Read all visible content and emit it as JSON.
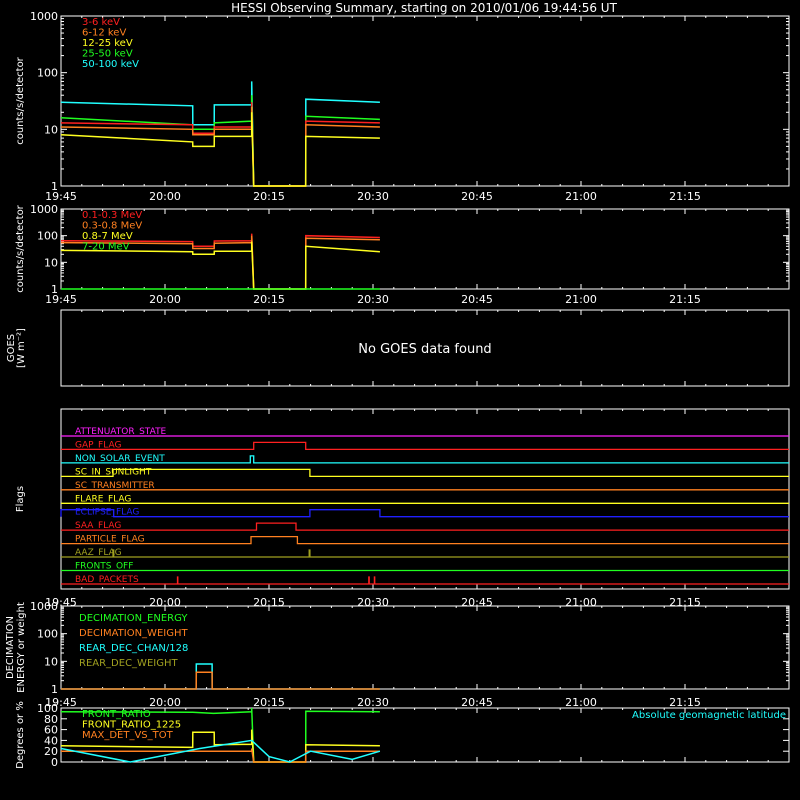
{
  "title": "HESSI Observing Summary, starting on 2010/01/06 19:44:56 UT",
  "time_ticks": [
    "19:45",
    "20:00",
    "20:15",
    "20:30",
    "20:45",
    "21:00",
    "21:15"
  ],
  "chart_data": [
    {
      "type": "line",
      "name": "low-energy",
      "ylabel": "counts/s/detector",
      "yscale": "log",
      "ylim": [
        1,
        1000
      ],
      "ytick_labels": [
        "1",
        "10",
        "100",
        "1000"
      ],
      "xlim_minutes": [
        0,
        46
      ],
      "legend": [
        {
          "label": "3-6 keV",
          "color": "#ff2020"
        },
        {
          "label": "6-12 keV",
          "color": "#ff8020"
        },
        {
          "label": "12-25 keV",
          "color": "#ffff20"
        },
        {
          "label": "25-50 keV",
          "color": "#20ff20"
        },
        {
          "label": "50-100 keV",
          "color": "#20ffff"
        }
      ],
      "series": [
        {
          "color": "#20ffff",
          "x": [
            0,
            19,
            19.01,
            22.1,
            22.11,
            27.5,
            27.51,
            27.8,
            27.81,
            35.3,
            35.31,
            46
          ],
          "y": [
            30,
            26,
            12,
            12,
            27,
            27,
            70,
            1,
            1,
            1,
            34,
            30
          ]
        },
        {
          "color": "#20ff20",
          "x": [
            0,
            19,
            19.01,
            22.1,
            22.11,
            27.5,
            27.51,
            27.8,
            27.81,
            35.3,
            35.31,
            46
          ],
          "y": [
            16,
            12,
            10,
            10,
            13,
            14,
            40,
            1,
            1,
            1,
            17,
            15
          ]
        },
        {
          "color": "#ff2020",
          "x": [
            0,
            19,
            19.01,
            22.1,
            22.11,
            27.5,
            27.51,
            27.8,
            27.81,
            35.3,
            35.31,
            46
          ],
          "y": [
            13,
            12,
            8.5,
            8.5,
            11,
            11,
            30,
            1,
            1,
            1,
            14,
            13
          ]
        },
        {
          "color": "#ff8020",
          "x": [
            0,
            19,
            19.01,
            22.1,
            22.11,
            27.5,
            27.51,
            27.8,
            27.81,
            35.3,
            35.31,
            46
          ],
          "y": [
            11,
            10,
            8,
            8,
            10,
            10,
            25,
            1,
            1,
            1,
            12,
            11
          ]
        },
        {
          "color": "#ffff20",
          "x": [
            0,
            19,
            19.01,
            22.1,
            22.11,
            27.5,
            27.51,
            27.8,
            27.81,
            35.3,
            35.31,
            46
          ],
          "y": [
            8,
            6,
            5,
            5,
            7.5,
            7.5,
            20,
            1,
            1,
            1,
            7.5,
            7
          ]
        }
      ]
    },
    {
      "type": "line",
      "name": "high-energy",
      "ylabel": "counts/s/detector",
      "yscale": "log",
      "ylim": [
        1,
        1000
      ],
      "ytick_labels": [
        "1",
        "10",
        "100",
        "1000"
      ],
      "xlim_minutes": [
        0,
        46
      ],
      "legend": [
        {
          "label": "0.1-0.3 MeV",
          "color": "#ff2020"
        },
        {
          "label": "0.3-0.8 MeV",
          "color": "#ff8020"
        },
        {
          "label": "0.8-7 MeV",
          "color": "#ffff20"
        },
        {
          "label": "7-20 MeV",
          "color": "#20ff20"
        }
      ],
      "series": [
        {
          "color": "#ff2020",
          "x": [
            0,
            19,
            19.01,
            22.1,
            22.11,
            27.5,
            27.51,
            27.8,
            27.81,
            35.3,
            35.31,
            46
          ],
          "y": [
            65,
            60,
            40,
            40,
            63,
            65,
            120,
            1,
            1,
            1,
            100,
            85
          ]
        },
        {
          "color": "#ff8020",
          "x": [
            0,
            19,
            19.01,
            22.1,
            22.11,
            27.5,
            27.51,
            27.8,
            27.81,
            35.3,
            35.31,
            46
          ],
          "y": [
            55,
            50,
            33,
            33,
            52,
            55,
            100,
            1,
            1,
            1,
            80,
            70
          ]
        },
        {
          "color": "#ffff20",
          "x": [
            0,
            19,
            19.01,
            22.1,
            22.11,
            27.5,
            27.51,
            27.8,
            27.81,
            35.3,
            35.31,
            46
          ],
          "y": [
            28,
            25,
            20,
            20,
            26,
            26,
            60,
            1,
            1,
            1,
            40,
            25
          ]
        },
        {
          "color": "#20ff20",
          "x": [
            0,
            46
          ],
          "y": [
            1,
            1
          ]
        }
      ]
    },
    {
      "type": "line",
      "name": "goes",
      "ylabel": "GOES [W m⁻²]",
      "message": "No GOES data found"
    },
    {
      "type": "line",
      "name": "flags",
      "ylabel": "Flags",
      "xlim_minutes": [
        0,
        46
      ],
      "flags": [
        {
          "label": "ATTENUATOR_STATE",
          "color": "#ff20ff",
          "on": []
        },
        {
          "label": "GAP_FLAG",
          "color": "#ff2020",
          "on": [
            [
              27.8,
              35.3
            ]
          ]
        },
        {
          "label": "NON_SOLAR_EVENT",
          "color": "#20ffff",
          "on": [
            [
              27.3,
              27.8
            ]
          ]
        },
        {
          "label": "SC_IN_SUNLIGHT",
          "color": "#ffff20",
          "on": [
            [
              7.5,
              35.9
            ]
          ]
        },
        {
          "label": "SC_TRANSMITTER",
          "color": "#ff8020",
          "on": []
        },
        {
          "label": "FLARE_FLAG",
          "color": "#ffff20",
          "on": []
        },
        {
          "label": "ECLIPSE_FLAG",
          "color": "#2020ff",
          "on": [
            [
              0,
              7.6
            ],
            [
              35.9,
              46
            ]
          ]
        },
        {
          "label": "SAA_FLAG",
          "color": "#ff2020",
          "on": [
            [
              28.2,
              33.9
            ]
          ]
        },
        {
          "label": "PARTICLE_FLAG",
          "color": "#ff8020",
          "on": [
            [
              27.4,
              34.1
            ]
          ]
        },
        {
          "label": "AAZ_FLAG",
          "color": "#a0a020",
          "on": [
            [
              7.5,
              7.6
            ],
            [
              35.8,
              35.9
            ]
          ]
        },
        {
          "label": "FRONTS_OFF",
          "color": "#20ff20",
          "on": []
        },
        {
          "label": "BAD_PACKETS",
          "color": "#ff2020",
          "on": [
            [
              16.8,
              16.85
            ],
            [
              44.4,
              44.45
            ],
            [
              45.2,
              45.25
            ]
          ]
        }
      ]
    },
    {
      "type": "line",
      "name": "decimation",
      "ylabel": "DECIMATION ENERGY or weight",
      "yscale": "log",
      "ylim": [
        1,
        1000
      ],
      "ytick_labels": [
        "1",
        "10",
        "100",
        "1000"
      ],
      "xlim_minutes": [
        0,
        46
      ],
      "legend": [
        {
          "label": "DECIMATION_ENERGY",
          "color": "#20ff20"
        },
        {
          "label": "DECIMATION_WEIGHT",
          "color": "#ff8020"
        },
        {
          "label": "REAR_DEC_CHAN/128",
          "color": "#20ffff"
        },
        {
          "label": "REAR_DEC_WEIGHT",
          "color": "#a0a020"
        }
      ],
      "series": [
        {
          "color": "#20ffff",
          "x": [
            0,
            19.5,
            19.51,
            21.8,
            21.81,
            46
          ],
          "y": [
            1,
            1,
            8,
            8,
            1,
            1
          ]
        },
        {
          "color": "#ff8020",
          "x": [
            0,
            19.5,
            19.51,
            21.8,
            21.81,
            46
          ],
          "y": [
            1,
            1,
            4,
            4,
            1,
            1
          ]
        }
      ]
    },
    {
      "type": "line",
      "name": "ratios",
      "ylabel": "Degrees or %",
      "ylim": [
        0,
        100
      ],
      "ytick_labels": [
        "0",
        "20",
        "40",
        "60",
        "80",
        "100"
      ],
      "xlim_minutes": [
        0,
        46
      ],
      "legend": [
        {
          "label": "FRONT_RATIO",
          "color": "#20ff20"
        },
        {
          "label": "FRONT_RATIO_1225",
          "color": "#ffff20"
        },
        {
          "label": "MAX_DET_VS_TOT",
          "color": "#ff8020"
        }
      ],
      "annotation": "Absolute geomagnetic latitude",
      "series": [
        {
          "color": "#20ff20",
          "x": [
            0,
            19,
            22,
            27.5,
            27.51,
            27.8,
            27.81,
            35.3,
            35.31,
            46
          ],
          "y": [
            93,
            92,
            90,
            93,
            100,
            0,
            0,
            0,
            94,
            93
          ]
        },
        {
          "color": "#ffff20",
          "x": [
            0,
            19,
            19.01,
            22.1,
            22.11,
            27.5,
            27.51,
            27.8,
            27.81,
            35.3,
            35.31,
            46
          ],
          "y": [
            30,
            27,
            55,
            55,
            32,
            33,
            60,
            0,
            0,
            0,
            32,
            30
          ]
        },
        {
          "color": "#ff8020",
          "x": [
            0,
            27.5,
            27.51,
            27.8,
            27.81,
            35.3,
            35.31,
            46
          ],
          "y": [
            20,
            20,
            25,
            0,
            0,
            0,
            20,
            20
          ]
        },
        {
          "color": "#20ffff",
          "x": [
            0,
            10,
            20,
            27.5,
            30,
            33,
            36,
            42,
            46
          ],
          "y": [
            25,
            0,
            25,
            40,
            10,
            0,
            20,
            5,
            20
          ]
        }
      ]
    }
  ]
}
